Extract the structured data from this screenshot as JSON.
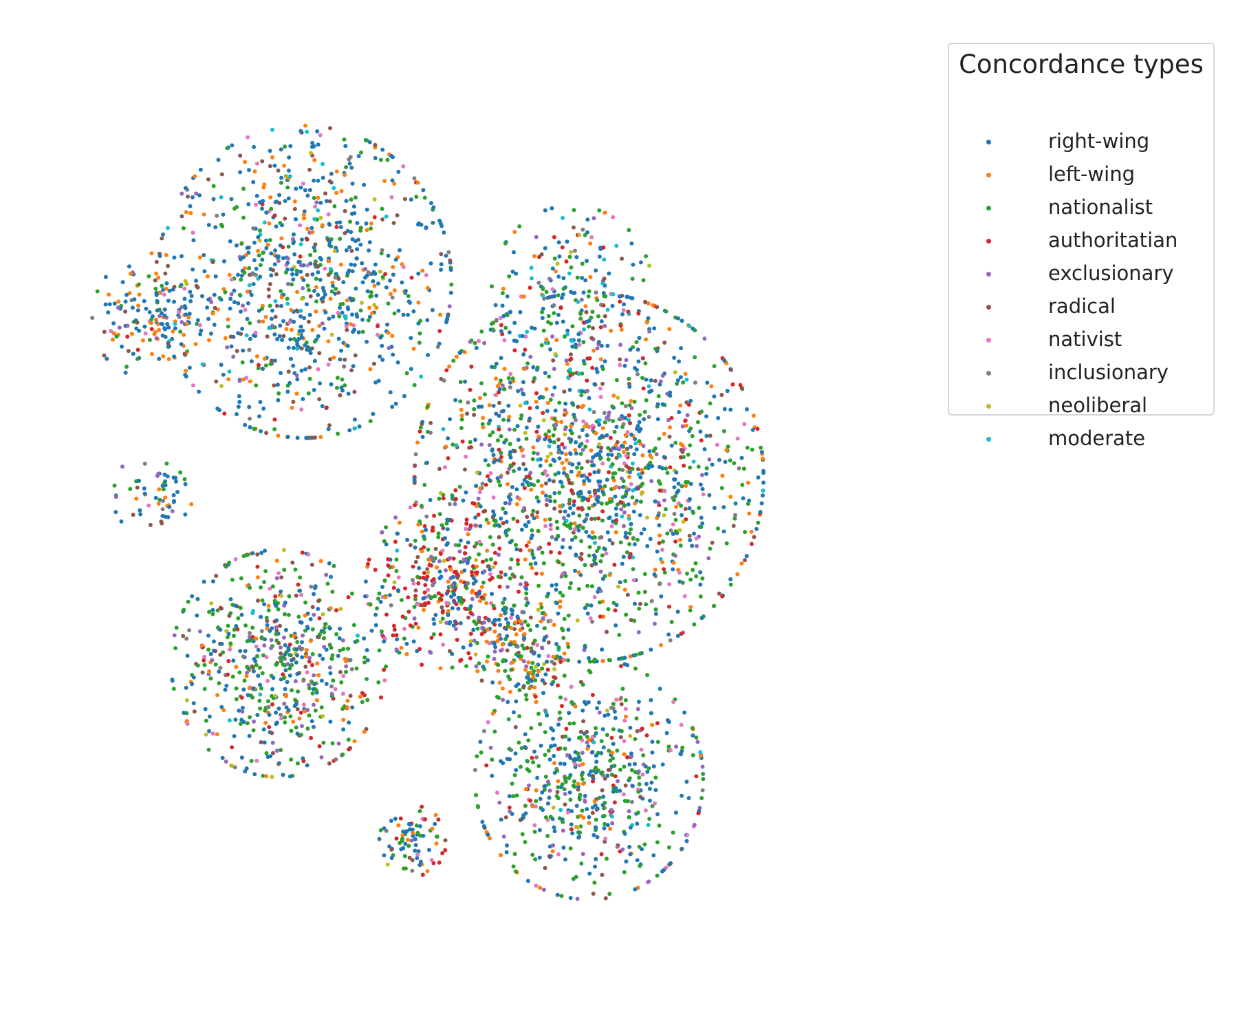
{
  "chart_data": {
    "type": "scatter",
    "title": "",
    "xlabel": "",
    "ylabel": "",
    "axes_visible": false,
    "grid": false,
    "legend_placement": "upper-right-outside",
    "legend": {
      "title": "Concordance types",
      "entries": [
        {
          "label": "right-wing",
          "color": "#1f77b4"
        },
        {
          "label": "left-wing",
          "color": "#ff7f0e"
        },
        {
          "label": "nationalist",
          "color": "#2ca02c"
        },
        {
          "label": "authoritatian",
          "color": "#d62728"
        },
        {
          "label": "exclusionary",
          "color": "#9467bd"
        },
        {
          "label": "radical",
          "color": "#8c564b"
        },
        {
          "label": "nativist",
          "color": "#e377c2"
        },
        {
          "label": "inclusionary",
          "color": "#7f7f7f"
        },
        {
          "label": "neoliberal",
          "color": "#bcbd22"
        },
        {
          "label": "moderate",
          "color": "#17becf"
        }
      ]
    },
    "xlim": [
      0,
      100
    ],
    "ylim": [
      0,
      100
    ],
    "clusters": [
      {
        "cx": 10,
        "cy": 72,
        "spread": 4.5,
        "count": 160,
        "weights": [
          0.45,
          0.18,
          0.12,
          0.02,
          0.05,
          0.1,
          0.03,
          0.02,
          0.01,
          0.02
        ]
      },
      {
        "cx": 28,
        "cy": 76,
        "spread": 11,
        "count": 900,
        "weights": [
          0.45,
          0.15,
          0.14,
          0.02,
          0.04,
          0.09,
          0.04,
          0.02,
          0.02,
          0.03
        ]
      },
      {
        "cx": 10,
        "cy": 52,
        "spread": 3,
        "count": 60,
        "weights": [
          0.4,
          0.2,
          0.15,
          0.02,
          0.05,
          0.1,
          0.03,
          0.02,
          0.01,
          0.02
        ]
      },
      {
        "cx": 62,
        "cy": 54,
        "spread": 13,
        "count": 1500,
        "weights": [
          0.28,
          0.1,
          0.27,
          0.08,
          0.08,
          0.07,
          0.05,
          0.03,
          0.02,
          0.02
        ]
      },
      {
        "cx": 45,
        "cy": 42,
        "spread": 6,
        "count": 380,
        "weights": [
          0.25,
          0.08,
          0.14,
          0.3,
          0.06,
          0.07,
          0.04,
          0.03,
          0.02,
          0.01
        ]
      },
      {
        "cx": 25,
        "cy": 33,
        "spread": 8,
        "count": 600,
        "weights": [
          0.3,
          0.1,
          0.3,
          0.05,
          0.08,
          0.07,
          0.04,
          0.03,
          0.02,
          0.01
        ]
      },
      {
        "cx": 62,
        "cy": 20,
        "spread": 8.5,
        "count": 600,
        "weights": [
          0.3,
          0.07,
          0.33,
          0.05,
          0.08,
          0.07,
          0.05,
          0.03,
          0.01,
          0.01
        ]
      },
      {
        "cx": 41,
        "cy": 13,
        "spread": 2.5,
        "count": 80,
        "weights": [
          0.35,
          0.12,
          0.3,
          0.1,
          0.03,
          0.03,
          0.02,
          0.02,
          0.02,
          0.01
        ]
      },
      {
        "cx": 54,
        "cy": 34,
        "spread": 3.5,
        "count": 150,
        "weights": [
          0.3,
          0.15,
          0.3,
          0.05,
          0.05,
          0.08,
          0.03,
          0.02,
          0.01,
          0.01
        ]
      },
      {
        "cx": 60,
        "cy": 75,
        "spread": 6,
        "count": 180,
        "weights": [
          0.35,
          0.07,
          0.25,
          0.08,
          0.05,
          0.05,
          0.03,
          0.02,
          0.02,
          0.08
        ]
      }
    ]
  }
}
